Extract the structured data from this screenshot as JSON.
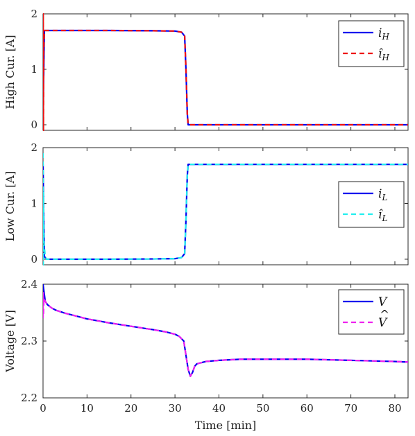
{
  "chart_data": {
    "type": "line",
    "xlabel": "Time [min]",
    "xlim": [
      0,
      83
    ],
    "xticks": [
      0,
      10,
      20,
      30,
      40,
      50,
      60,
      70,
      80
    ],
    "panels": [
      {
        "ylabel": "High Cur. [A]",
        "ylim": [
          -0.1,
          2.0
        ],
        "yticks": [
          0,
          1,
          2
        ],
        "legend_position": "top-right",
        "series": [
          {
            "name": "i_H",
            "legend_main": "i",
            "legend_sub": "H",
            "hat": false,
            "color": "#0000ee",
            "dashed": false,
            "x": [
              0,
              0.3,
              5,
              15,
              25,
              30,
              31.5,
              32.2,
              32.5,
              32.8,
              33,
              40,
              50,
              60,
              70,
              83
            ],
            "y": [
              0,
              1.7,
              1.7,
              1.7,
              1.695,
              1.69,
              1.67,
              1.6,
              1.0,
              0.2,
              0,
              0,
              0,
              0,
              0,
              0
            ]
          },
          {
            "name": "î_H",
            "legend_main": "î",
            "legend_sub": "H",
            "hat": true,
            "color": "#ee1111",
            "dashed": true,
            "x": [
              0,
              0.05,
              0.1,
              0.15,
              0.3,
              5,
              15,
              25,
              30,
              31.5,
              32.2,
              32.5,
              32.8,
              33,
              40,
              50,
              60,
              70,
              83
            ],
            "y": [
              -0.1,
              2.0,
              -0.1,
              1.3,
              1.7,
              1.7,
              1.7,
              1.695,
              1.69,
              1.67,
              1.6,
              1.0,
              0.2,
              0,
              0,
              0,
              0,
              0,
              0
            ]
          }
        ]
      },
      {
        "ylabel": "Low Cur. [A]",
        "ylim": [
          -0.1,
          2.0
        ],
        "yticks": [
          0,
          1,
          2
        ],
        "legend_position": "right",
        "series": [
          {
            "name": "i_L",
            "legend_main": "i",
            "legend_sub": "L",
            "hat": false,
            "color": "#0000ee",
            "dashed": false,
            "x": [
              0,
              0.3,
              0.8,
              5,
              15,
              25,
              30,
              31.5,
              32.2,
              32.5,
              32.8,
              33,
              40,
              50,
              60,
              70,
              83
            ],
            "y": [
              1.7,
              0.05,
              0,
              0,
              0,
              0.005,
              0.01,
              0.03,
              0.1,
              0.7,
              1.5,
              1.7,
              1.7,
              1.7,
              1.7,
              1.7,
              1.7
            ]
          },
          {
            "name": "î_L",
            "legend_main": "î",
            "legend_sub": "L",
            "hat": true,
            "color": "#22eeee",
            "dashed": true,
            "x": [
              0,
              0.05,
              0.1,
              0.2,
              0.5,
              0.8,
              5,
              15,
              25,
              30,
              31.5,
              32.2,
              32.5,
              32.8,
              33,
              40,
              50,
              60,
              70,
              83
            ],
            "y": [
              1.9,
              -0.1,
              1.2,
              0.3,
              0.05,
              0,
              0,
              0,
              0.005,
              0.01,
              0.03,
              0.1,
              0.7,
              1.5,
              1.7,
              1.7,
              1.7,
              1.7,
              1.7,
              1.7
            ]
          }
        ]
      },
      {
        "ylabel": "Voltage [V]",
        "ylim": [
          2.2,
          2.4
        ],
        "yticks": [
          2.2,
          2.3,
          2.4
        ],
        "legend_position": "top-right",
        "series": [
          {
            "name": "V",
            "legend_main": "V",
            "legend_sub": "",
            "hat": false,
            "color": "#0000ee",
            "dashed": false,
            "x": [
              0,
              0.5,
              1,
              2,
              3,
              5,
              8,
              10,
              15,
              20,
              25,
              28,
              30,
              31,
              32,
              32.5,
              33,
              33.5,
              34,
              34.5,
              35,
              37,
              40,
              45,
              50,
              55,
              60,
              65,
              70,
              75,
              80,
              83
            ],
            "y": [
              2.4,
              2.37,
              2.364,
              2.358,
              2.354,
              2.349,
              2.343,
              2.339,
              2.332,
              2.326,
              2.32,
              2.316,
              2.312,
              2.308,
              2.3,
              2.275,
              2.25,
              2.238,
              2.245,
              2.256,
              2.26,
              2.264,
              2.266,
              2.268,
              2.268,
              2.268,
              2.268,
              2.267,
              2.266,
              2.265,
              2.264,
              2.263
            ]
          },
          {
            "name": "V̂",
            "legend_main": "V",
            "legend_sub": "",
            "hat": true,
            "color": "#ee22ee",
            "dashed": true,
            "x": [
              0,
              0.05,
              0.1,
              0.2,
              0.5,
              1,
              2,
              3,
              5,
              8,
              10,
              15,
              20,
              25,
              28,
              30,
              31,
              32,
              32.5,
              33,
              33.5,
              34,
              34.5,
              35,
              37,
              40,
              45,
              50,
              55,
              60,
              65,
              70,
              75,
              80,
              83
            ],
            "y": [
              2.34,
              2.385,
              2.345,
              2.375,
              2.37,
              2.364,
              2.358,
              2.354,
              2.349,
              2.343,
              2.339,
              2.332,
              2.326,
              2.32,
              2.316,
              2.312,
              2.308,
              2.3,
              2.275,
              2.25,
              2.238,
              2.245,
              2.256,
              2.26,
              2.264,
              2.266,
              2.268,
              2.268,
              2.268,
              2.268,
              2.267,
              2.266,
              2.265,
              2.264,
              2.263
            ]
          }
        ]
      }
    ]
  }
}
